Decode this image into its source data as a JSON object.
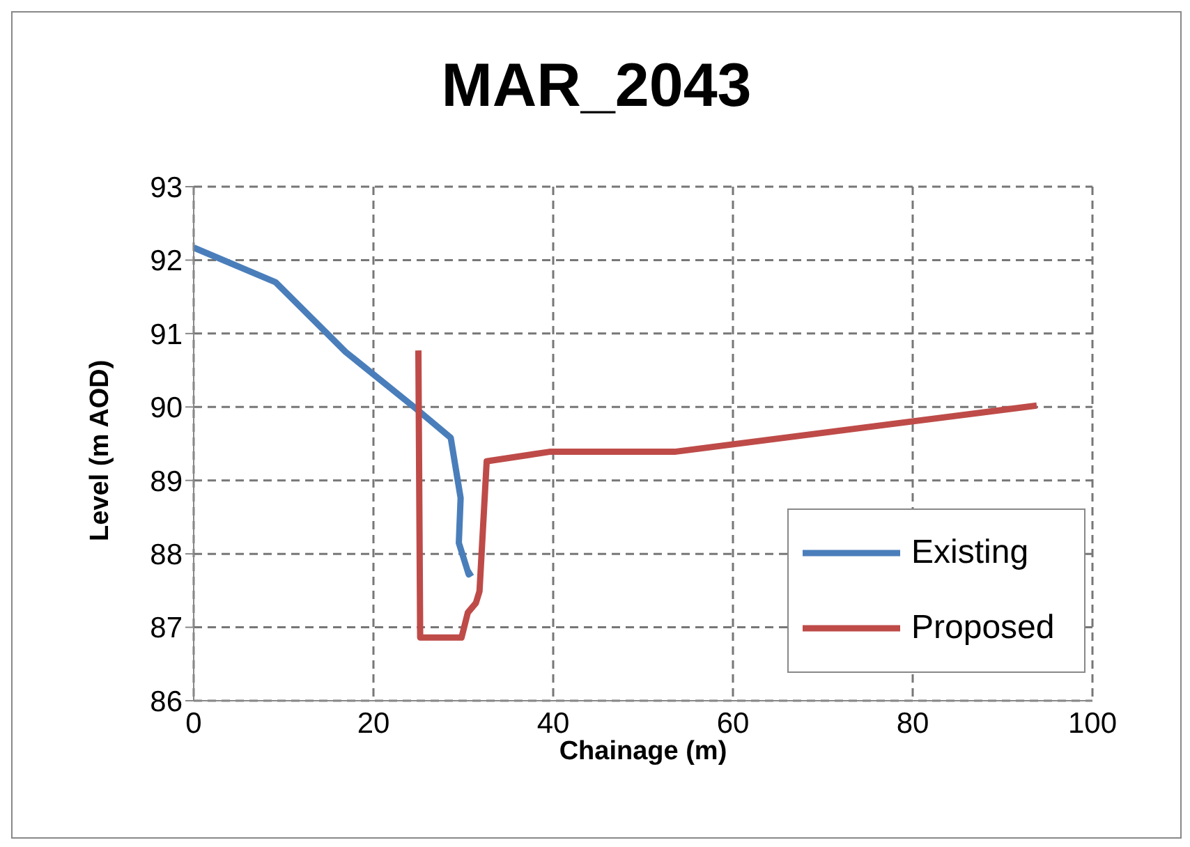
{
  "chart_data": {
    "type": "line",
    "title": "MAR_2043",
    "xlabel": "Chainage (m)",
    "ylabel": "Level (m AOD)",
    "xlim": [
      0,
      100
    ],
    "xticks": [
      0,
      20,
      40,
      60,
      80,
      100
    ],
    "ylim": [
      86,
      93
    ],
    "yticks": [
      86,
      87,
      88,
      89,
      90,
      91,
      92,
      93
    ],
    "grid": true,
    "legend": "bottom right",
    "marker": "none",
    "line_style": "solid",
    "series": [
      {
        "name": "Existing",
        "color": "#4a7ebb",
        "x": [
          0,
          9.1,
          16.9,
          24.6,
          28.6,
          29.7,
          29.5,
          30.6,
          31.0
        ],
        "values": [
          92.17,
          91.7,
          90.75,
          89.99,
          89.58,
          88.76,
          88.15,
          87.72,
          87.75
        ]
      },
      {
        "name": "Proposed",
        "color": "#be4b48",
        "x": [
          25.0,
          25.2,
          29.8,
          30.5,
          31.4,
          31.8,
          32.6,
          39.6,
          53.5,
          93.8
        ],
        "values": [
          90.77,
          86.86,
          86.86,
          87.2,
          87.33,
          87.49,
          89.26,
          89.39,
          89.39,
          90.02
        ]
      }
    ]
  }
}
